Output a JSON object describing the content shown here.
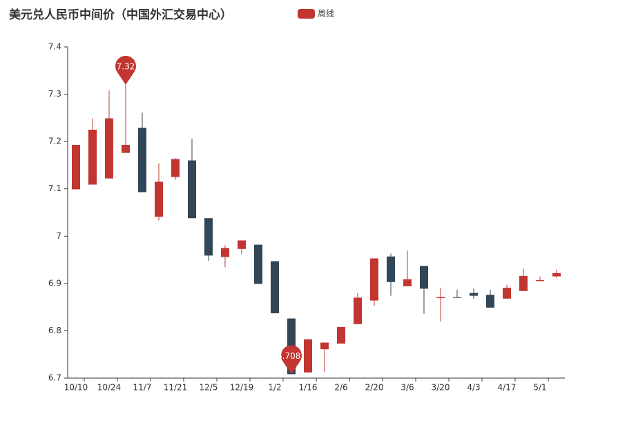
{
  "chart_data": {
    "type": "candlestick",
    "title": "美元兑人民币中间价（中国外汇交易中心）",
    "categories": [
      "10/10",
      null,
      "10/24",
      null,
      "11/7",
      null,
      "11/21",
      null,
      "12/5",
      null,
      "12/19",
      null,
      "1/2",
      null,
      "1/16",
      null,
      "2/6",
      null,
      "2/20",
      null,
      "3/6",
      null,
      "3/20",
      null,
      "4/3",
      null,
      "4/17",
      null,
      "5/1",
      null
    ],
    "series": [
      {
        "name": "周线",
        "up_color": "#c23531",
        "down_color": "#314656",
        "values": [
          [
            7.099,
            7.193,
            7.099,
            7.193
          ],
          [
            7.109,
            7.225,
            7.109,
            7.249
          ],
          [
            7.122,
            7.249,
            7.122,
            7.308
          ],
          [
            7.176,
            7.193,
            7.176,
            7.32
          ],
          [
            7.229,
            7.093,
            7.093,
            7.261
          ],
          [
            7.041,
            7.115,
            7.033,
            7.154
          ],
          [
            7.125,
            7.163,
            7.119,
            7.165
          ],
          [
            7.16,
            7.038,
            7.038,
            7.206
          ],
          [
            7.038,
            6.959,
            6.948,
            7.038
          ],
          [
            6.956,
            6.975,
            6.934,
            6.981
          ],
          [
            6.973,
            6.991,
            6.962,
            6.991
          ],
          [
            6.982,
            6.899,
            6.899,
            6.982
          ],
          [
            6.947,
            6.837,
            6.837,
            6.947
          ],
          [
            6.826,
            6.7082,
            6.7082,
            6.826
          ],
          [
            6.712,
            6.782,
            6.712,
            6.782
          ],
          [
            6.761,
            6.775,
            6.712,
            6.775
          ],
          [
            6.773,
            6.808,
            6.773,
            6.808
          ],
          [
            6.814,
            6.87,
            6.814,
            6.88
          ],
          [
            6.864,
            6.953,
            6.853,
            6.953
          ],
          [
            6.957,
            6.903,
            6.874,
            6.963
          ],
          [
            6.894,
            6.909,
            6.894,
            6.97
          ],
          [
            6.937,
            6.889,
            6.836,
            6.937
          ],
          [
            6.869,
            6.871,
            6.82,
            6.891
          ],
          [
            6.871,
            6.87,
            6.87,
            6.887
          ],
          [
            6.88,
            6.874,
            6.868,
            6.889
          ],
          [
            6.876,
            6.849,
            6.849,
            6.887
          ],
          [
            6.868,
            6.891,
            6.868,
            6.897
          ],
          [
            6.884,
            6.916,
            6.884,
            6.931
          ],
          [
            6.905,
            6.907,
            6.905,
            6.915
          ],
          [
            6.915,
            6.922,
            6.912,
            6.929
          ]
        ]
      }
    ],
    "max_value": 7.32,
    "min_value": 6.7082,
    "ylim": [
      6.7,
      7.4
    ],
    "yticks": [
      6.7,
      6.8,
      6.9,
      7,
      7.1,
      7.2,
      7.3,
      7.4
    ]
  }
}
